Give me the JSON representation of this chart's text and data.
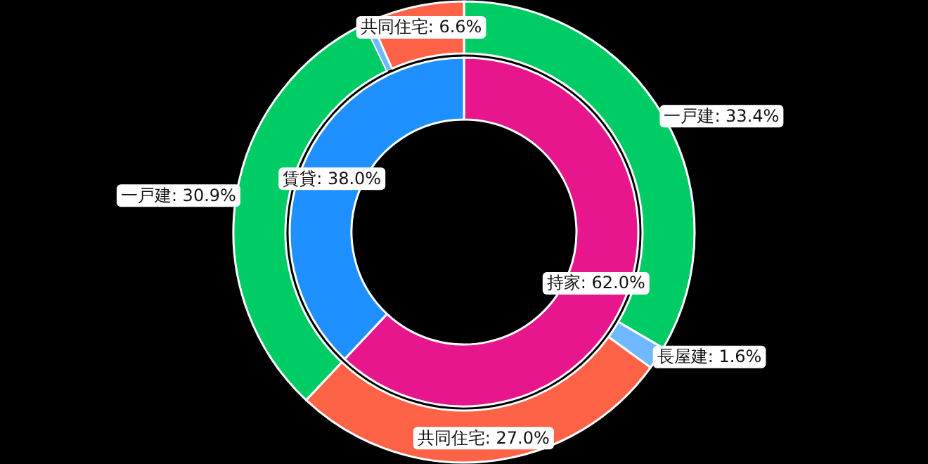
{
  "chart_data": [
    {
      "type": "donut",
      "categories": [
        "持家",
        "賃貸"
      ],
      "values": [
        62.0,
        38.0
      ],
      "colors": [
        "#e8168c",
        "#1e90ff"
      ],
      "value_labels": [
        ": 62.0%",
        ": 38.0%"
      ]
    },
    {
      "type": "donut",
      "categories": [
        "一戸建",
        "長屋建",
        "共同住宅",
        "一戸建",
        null,
        "共同住宅"
      ],
      "values": [
        33.4,
        1.6,
        27.0,
        30.9,
        0.5,
        6.6
      ],
      "colors": [
        "#00cc66",
        "#70b8ff",
        "#ff6347",
        "#00cc66",
        "#70b8ff",
        "#ff6347"
      ],
      "value_labels": [
        ": 33.4%",
        ": 1.6%",
        ": 27.0%",
        ": 30.9%",
        null,
        ": 6.6%"
      ]
    }
  ]
}
